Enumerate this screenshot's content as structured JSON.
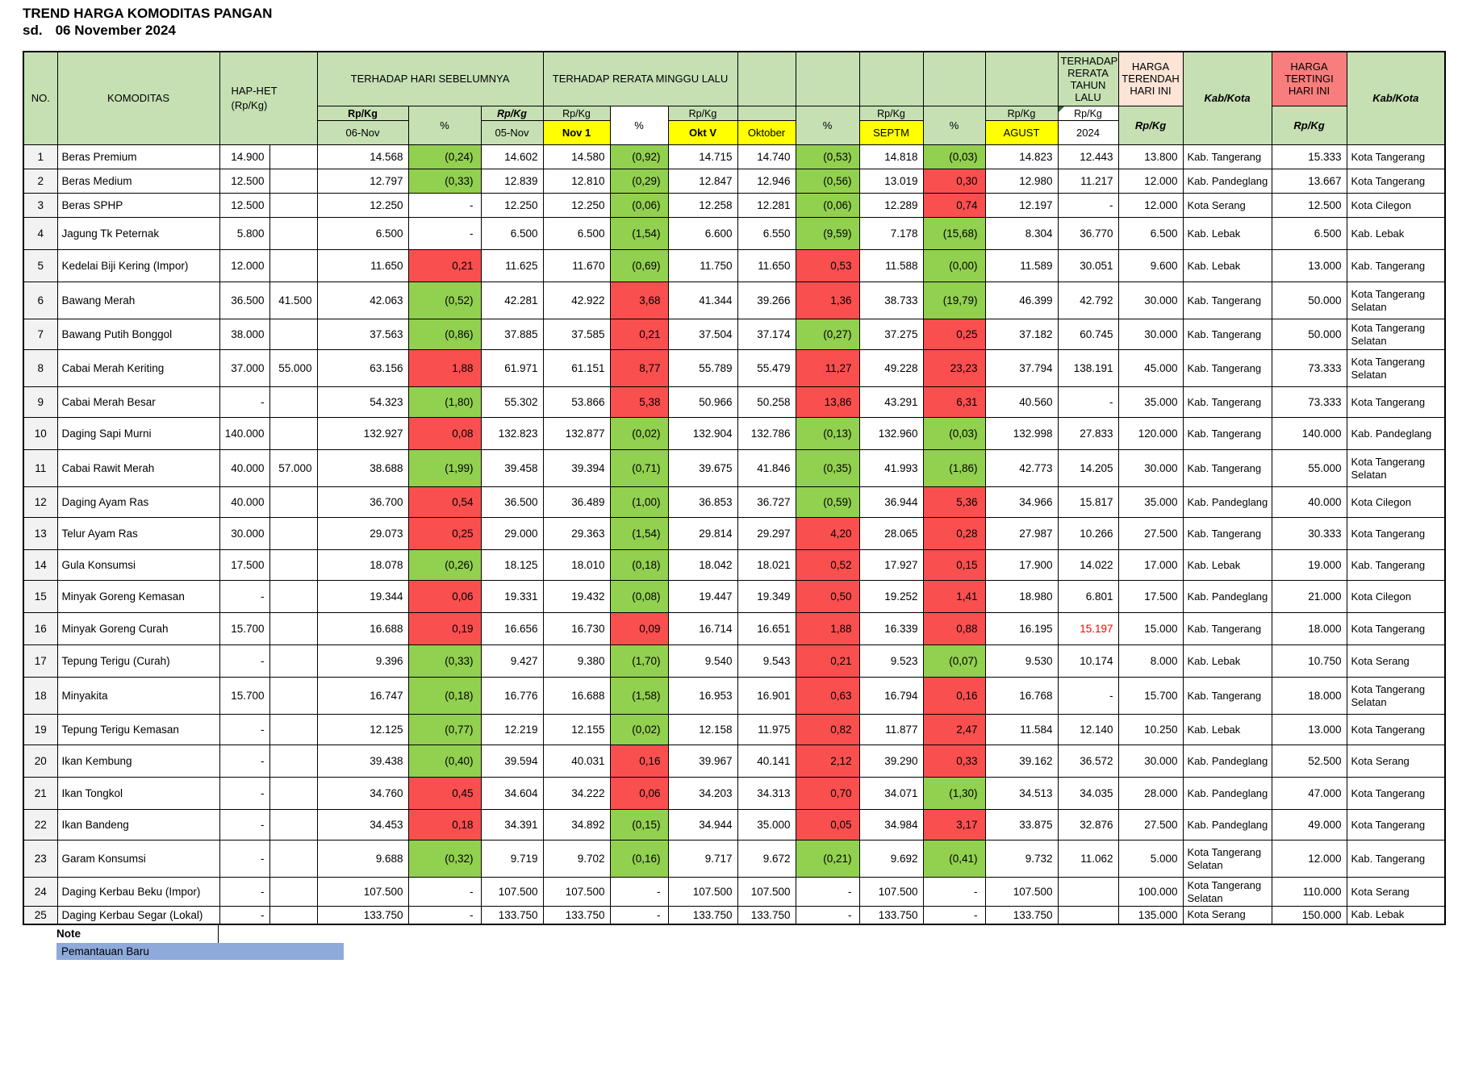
{
  "title": {
    "line1": "TREND HARGA KOMODITAS PANGAN",
    "prefix": "sd.",
    "date": "06 November 2024"
  },
  "colors": {
    "header_green": "#c6e0b4",
    "yellow": "#ffff00",
    "green_cell": "#92d050",
    "red_cell": "#f94f4f",
    "lowest_header": "#fce4d6",
    "highest_header": "#f87e7d",
    "no_col_bg": "#f2f2f2",
    "note_bar": "#8eaadb",
    "red_text": "#ff0000"
  },
  "header": {
    "no": "NO.",
    "komoditas": "KOMODITAS",
    "hap_het": "HAP-HET",
    "hap_het_unit": "(Rp/Kg)",
    "group_prev_day": "TERHADAP HARI SEBELUMNYA",
    "group_last_week": "TERHADAP RERATA MINGGU LALU",
    "group_last_year": "TERHADAP RERATA TAHUN LALU",
    "group_lowest": "HARGA TERENDAH HARI INI",
    "group_highest": "HARGA TERTINGI HARI INI",
    "kab_kota": "Kab/Kota",
    "rp_kg": "Rp/Kg",
    "pct": "%",
    "sub": {
      "d06": "06-Nov",
      "d05": "05-Nov",
      "nov1": "Nov 1",
      "oktv": "Okt V",
      "oktober": "Oktober",
      "septm": "SEPTM",
      "agust": "AGUST",
      "y2024": "2024"
    }
  },
  "note": {
    "label": "Note",
    "item": "Pemantauan Baru"
  },
  "rows": [
    {
      "no": "1",
      "name": "Beras Premium",
      "hap": "14.900",
      "het": "",
      "d06": "14.568",
      "p1": "(0,24)",
      "p1c": "g",
      "d05": "14.602",
      "nov1": "14.580",
      "p2": "(0,92)",
      "p2c": "g",
      "oktv": "14.715",
      "okt": "14.740",
      "p3": "(0,53)",
      "p3c": "g",
      "septm": "14.818",
      "p4": "(0,03)",
      "p4c": "g",
      "agust": "14.823",
      "y2024": "12.443",
      "low": "13.800",
      "low_loc": "Kab. Tangerang",
      "high": "15.333",
      "high_loc": "Kota Tangerang"
    },
    {
      "no": "2",
      "name": "Beras Medium",
      "hap": "12.500",
      "het": "",
      "d06": "12.797",
      "p1": "(0,33)",
      "p1c": "g",
      "d05": "12.839",
      "nov1": "12.810",
      "p2": "(0,29)",
      "p2c": "g",
      "oktv": "12.847",
      "okt": "12.946",
      "p3": "(0,56)",
      "p3c": "g",
      "septm": "13.019",
      "p4": "0,30",
      "p4c": "r",
      "agust": "12.980",
      "y2024": "11.217",
      "low": "12.000",
      "low_loc": "Kab. Pandeglang",
      "high": "13.667",
      "high_loc": "Kota Tangerang"
    },
    {
      "no": "3",
      "name": "Beras SPHP",
      "hap": "12.500",
      "het": "",
      "d06": "12.250",
      "p1": "-",
      "p1c": "",
      "d05": "12.250",
      "nov1": "12.250",
      "p2": "(0,06)",
      "p2c": "g",
      "oktv": "12.258",
      "okt": "12.281",
      "p3": "(0,06)",
      "p3c": "g",
      "septm": "12.289",
      "p4": "0,74",
      "p4c": "r",
      "agust": "12.197",
      "y2024": "-",
      "low": "12.000",
      "low_loc": "Kota Serang",
      "high": "12.500",
      "high_loc": "Kota Cilegon"
    },
    {
      "no": "4",
      "name": "Jagung Tk Peternak",
      "hap": "5.800",
      "het": "",
      "d06": "6.500",
      "p1": "-",
      "p1c": "",
      "d05": "6.500",
      "nov1": "6.500",
      "p2": "(1,54)",
      "p2c": "g",
      "oktv": "6.600",
      "okt": "6.550",
      "p3": "(9,59)",
      "p3c": "g",
      "septm": "7.178",
      "p4": "(15,68)",
      "p4c": "g",
      "agust": "8.304",
      "y2024": "36.770",
      "low": "6.500",
      "low_loc": "Kab. Lebak",
      "high": "6.500",
      "high_loc": "Kab. Lebak"
    },
    {
      "no": "5",
      "name": "Kedelai Biji Kering (Impor)",
      "hap": "12.000",
      "het": "",
      "d06": "11.650",
      "p1": "0,21",
      "p1c": "r",
      "d05": "11.625",
      "nov1": "11.670",
      "p2": "(0,69)",
      "p2c": "g",
      "oktv": "11.750",
      "okt": "11.650",
      "p3": "0,53",
      "p3c": "r",
      "septm": "11.588",
      "p4": "(0,00)",
      "p4c": "g",
      "agust": "11.589",
      "y2024": "30.051",
      "low": "9.600",
      "low_loc": "Kab. Lebak",
      "high": "13.000",
      "high_loc": "Kab. Tangerang"
    },
    {
      "no": "6",
      "name": "Bawang Merah",
      "hap": "36.500",
      "het": "41.500",
      "d06": "42.063",
      "p1": "(0,52)",
      "p1c": "g",
      "d05": "42.281",
      "nov1": "42.922",
      "p2": "3,68",
      "p2c": "r",
      "oktv": "41.344",
      "okt": "39.266",
      "p3": "1,36",
      "p3c": "r",
      "septm": "38.733",
      "p4": "(19,79)",
      "p4c": "g",
      "agust": "46.399",
      "y2024": "42.792",
      "low": "30.000",
      "low_loc": "Kab. Tangerang",
      "high": "50.000",
      "high_loc": "Kota Tangerang Selatan"
    },
    {
      "no": "7",
      "name": "Bawang Putih Bonggol",
      "hap": "38.000",
      "het": "",
      "d06": "37.563",
      "p1": "(0,86)",
      "p1c": "g",
      "d05": "37.885",
      "nov1": "37.585",
      "p2": "0,21",
      "p2c": "r",
      "oktv": "37.504",
      "okt": "37.174",
      "p3": "(0,27)",
      "p3c": "g",
      "septm": "37.275",
      "p4": "0,25",
      "p4c": "r",
      "agust": "37.182",
      "y2024": "60.745",
      "low": "30.000",
      "low_loc": "Kab. Tangerang",
      "high": "50.000",
      "high_loc": "Kota Tangerang Selatan"
    },
    {
      "no": "8",
      "name": "Cabai Merah Keriting",
      "hap": "37.000",
      "het": "55.000",
      "d06": "63.156",
      "p1": "1,88",
      "p1c": "r",
      "d05": "61.971",
      "nov1": "61.151",
      "p2": "8,77",
      "p2c": "r",
      "oktv": "55.789",
      "okt": "55.479",
      "p3": "11,27",
      "p3c": "r",
      "septm": "49.228",
      "p4": "23,23",
      "p4c": "r",
      "agust": "37.794",
      "y2024": "138.191",
      "low": "45.000",
      "low_loc": "Kab. Tangerang",
      "high": "73.333",
      "high_loc": "Kota Tangerang Selatan"
    },
    {
      "no": "9",
      "name": "Cabai Merah Besar",
      "hap": "-",
      "het": "",
      "d06": "54.323",
      "p1": "(1,80)",
      "p1c": "g",
      "d05": "55.302",
      "nov1": "53.866",
      "p2": "5,38",
      "p2c": "r",
      "oktv": "50.966",
      "okt": "50.258",
      "p3": "13,86",
      "p3c": "r",
      "septm": "43.291",
      "p4": "6,31",
      "p4c": "r",
      "agust": "40.560",
      "y2024": "-",
      "low": "35.000",
      "low_loc": "Kab. Tangerang",
      "high": "73.333",
      "high_loc": "Kota Tangerang"
    },
    {
      "no": "10",
      "name": "Daging Sapi Murni",
      "hap": "140.000",
      "het": "",
      "d06": "132.927",
      "p1": "0,08",
      "p1c": "r",
      "d05": "132.823",
      "nov1": "132.877",
      "p2": "(0,02)",
      "p2c": "g",
      "oktv": "132.904",
      "okt": "132.786",
      "p3": "(0,13)",
      "p3c": "g",
      "septm": "132.960",
      "p4": "(0,03)",
      "p4c": "g",
      "agust": "132.998",
      "y2024": "27.833",
      "low": "120.000",
      "low_loc": "Kab. Tangerang",
      "high": "140.000",
      "high_loc": "Kab. Pandeglang"
    },
    {
      "no": "11",
      "name": "Cabai Rawit Merah",
      "hap": "40.000",
      "het": "57.000",
      "d06": "38.688",
      "p1": "(1,99)",
      "p1c": "g",
      "d05": "39.458",
      "nov1": "39.394",
      "p2": "(0,71)",
      "p2c": "g",
      "oktv": "39.675",
      "okt": "41.846",
      "p3": "(0,35)",
      "p3c": "g",
      "septm": "41.993",
      "p4": "(1,86)",
      "p4c": "g",
      "agust": "42.773",
      "y2024": "14.205",
      "low": "30.000",
      "low_loc": "Kab. Tangerang",
      "high": "55.000",
      "high_loc": "Kota Tangerang Selatan"
    },
    {
      "no": "12",
      "name": "Daging Ayam Ras",
      "hap": "40.000",
      "het": "",
      "d06": "36.700",
      "p1": "0,54",
      "p1c": "r",
      "d05": "36.500",
      "nov1": "36.489",
      "p2": "(1,00)",
      "p2c": "g",
      "oktv": "36.853",
      "okt": "36.727",
      "p3": "(0,59)",
      "p3c": "g",
      "septm": "36.944",
      "p4": "5,36",
      "p4c": "r",
      "agust": "34.966",
      "y2024": "15.817",
      "low": "35.000",
      "low_loc": "Kab. Pandeglang",
      "high": "40.000",
      "high_loc": "Kota Cilegon"
    },
    {
      "no": "13",
      "name": "Telur Ayam Ras",
      "hap": "30.000",
      "het": "",
      "d06": "29.073",
      "p1": "0,25",
      "p1c": "r",
      "d05": "29.000",
      "nov1": "29.363",
      "p2": "(1,54)",
      "p2c": "g",
      "oktv": "29.814",
      "okt": "29.297",
      "p3": "4,20",
      "p3c": "r",
      "septm": "28.065",
      "p4": "0,28",
      "p4c": "r",
      "agust": "27.987",
      "y2024": "10.266",
      "low": "27.500",
      "low_loc": "Kab. Tangerang",
      "high": "30.333",
      "high_loc": "Kota Tangerang"
    },
    {
      "no": "14",
      "name": "Gula Konsumsi",
      "hap": "17.500",
      "het": "",
      "d06": "18.078",
      "p1": "(0,26)",
      "p1c": "g",
      "d05": "18.125",
      "nov1": "18.010",
      "p2": "(0,18)",
      "p2c": "g",
      "oktv": "18.042",
      "okt": "18.021",
      "p3": "0,52",
      "p3c": "r",
      "septm": "17.927",
      "p4": "0,15",
      "p4c": "r",
      "agust": "17.900",
      "y2024": "14.022",
      "low": "17.000",
      "low_loc": "Kab. Lebak",
      "high": "19.000",
      "high_loc": "Kab. Tangerang"
    },
    {
      "no": "15",
      "name": "Minyak Goreng Kemasan",
      "hap": "-",
      "het": "",
      "d06": "19.344",
      "p1": "0,06",
      "p1c": "r",
      "d05": "19.331",
      "nov1": "19.432",
      "p2": "(0,08)",
      "p2c": "g",
      "oktv": "19.447",
      "okt": "19.349",
      "p3": "0,50",
      "p3c": "r",
      "septm": "19.252",
      "p4": "1,41",
      "p4c": "r",
      "agust": "18.980",
      "y2024": "6.801",
      "low": "17.500",
      "low_loc": "Kab. Pandeglang",
      "high": "21.000",
      "high_loc": "Kota Cilegon"
    },
    {
      "no": "16",
      "name": "Minyak Goreng Curah",
      "hap": "15.700",
      "het": "",
      "d06": "16.688",
      "p1": "0,19",
      "p1c": "r",
      "d05": "16.656",
      "nov1": "16.730",
      "p2": "0,09",
      "p2c": "r",
      "oktv": "16.714",
      "okt": "16.651",
      "p3": "1,88",
      "p3c": "r",
      "septm": "16.339",
      "p4": "0,88",
      "p4c": "r",
      "agust": "16.195",
      "y2024": "15.197",
      "y2024_red": true,
      "low": "15.000",
      "low_loc": "Kab. Tangerang",
      "high": "18.000",
      "high_loc": "Kota Tangerang"
    },
    {
      "no": "17",
      "name": "Tepung Terigu (Curah)",
      "hap": "-",
      "het": "",
      "d06": "9.396",
      "p1": "(0,33)",
      "p1c": "g",
      "d05": "9.427",
      "nov1": "9.380",
      "p2": "(1,70)",
      "p2c": "g",
      "oktv": "9.540",
      "okt": "9.543",
      "p3": "0,21",
      "p3c": "r",
      "septm": "9.523",
      "p4": "(0,07)",
      "p4c": "g",
      "agust": "9.530",
      "y2024": "10.174",
      "low": "8.000",
      "low_loc": "Kab. Lebak",
      "high": "10.750",
      "high_loc": "Kota Serang"
    },
    {
      "no": "18",
      "name": "Minyakita",
      "hap": "15.700",
      "het": "",
      "d06": "16.747",
      "p1": "(0,18)",
      "p1c": "g",
      "d05": "16.776",
      "nov1": "16.688",
      "p2": "(1,58)",
      "p2c": "g",
      "oktv": "16.953",
      "okt": "16.901",
      "p3": "0,63",
      "p3c": "r",
      "septm": "16.794",
      "p4": "0,16",
      "p4c": "r",
      "agust": "16.768",
      "y2024": "-",
      "low": "15.700",
      "low_loc": "Kab. Tangerang",
      "high": "18.000",
      "high_loc": "Kota Tangerang Selatan"
    },
    {
      "no": "19",
      "name": "Tepung Terigu Kemasan",
      "hap": "-",
      "het": "",
      "d06": "12.125",
      "p1": "(0,77)",
      "p1c": "g",
      "d05": "12.219",
      "nov1": "12.155",
      "p2": "(0,02)",
      "p2c": "g",
      "oktv": "12.158",
      "okt": "11.975",
      "p3": "0,82",
      "p3c": "r",
      "septm": "11.877",
      "p4": "2,47",
      "p4c": "r",
      "agust": "11.584",
      "y2024": "12.140",
      "low": "10.250",
      "low_loc": "Kab. Lebak",
      "high": "13.000",
      "high_loc": "Kota Tangerang"
    },
    {
      "no": "20",
      "name": "Ikan Kembung",
      "hap": "-",
      "het": "",
      "d06": "39.438",
      "p1": "(0,40)",
      "p1c": "g",
      "d05": "39.594",
      "nov1": "40.031",
      "p2": "0,16",
      "p2c": "r",
      "oktv": "39.967",
      "okt": "40.141",
      "p3": "2,12",
      "p3c": "r",
      "septm": "39.290",
      "p4": "0,33",
      "p4c": "r",
      "agust": "39.162",
      "y2024": "36.572",
      "low": "30.000",
      "low_loc": "Kab. Pandeglang",
      "high": "52.500",
      "high_loc": "Kota Serang"
    },
    {
      "no": "21",
      "name": "Ikan Tongkol",
      "hap": "-",
      "het": "",
      "d06": "34.760",
      "p1": "0,45",
      "p1c": "r",
      "d05": "34.604",
      "nov1": "34.222",
      "p2": "0,06",
      "p2c": "r",
      "oktv": "34.203",
      "okt": "34.313",
      "p3": "0,70",
      "p3c": "r",
      "septm": "34.071",
      "p4": "(1,30)",
      "p4c": "g",
      "agust": "34.513",
      "y2024": "34.035",
      "low": "28.000",
      "low_loc": "Kab. Pandeglang",
      "high": "47.000",
      "high_loc": "Kota Tangerang"
    },
    {
      "no": "22",
      "name": "Ikan Bandeng",
      "hap": "-",
      "het": "",
      "d06": "34.453",
      "p1": "0,18",
      "p1c": "r",
      "d05": "34.391",
      "nov1": "34.892",
      "p2": "(0,15)",
      "p2c": "g",
      "oktv": "34.944",
      "okt": "35.000",
      "p3": "0,05",
      "p3c": "r",
      "septm": "34.984",
      "p4": "3,17",
      "p4c": "r",
      "agust": "33.875",
      "y2024": "32.876",
      "low": "27.500",
      "low_loc": "Kab. Pandeglang",
      "high": "49.000",
      "high_loc": "Kota Tangerang"
    },
    {
      "no": "23",
      "name": "Garam Konsumsi",
      "hap": "-",
      "het": "",
      "d06": "9.688",
      "p1": "(0,32)",
      "p1c": "g",
      "d05": "9.719",
      "nov1": "9.702",
      "p2": "(0,16)",
      "p2c": "g",
      "oktv": "9.717",
      "okt": "9.672",
      "p3": "(0,21)",
      "p3c": "g",
      "septm": "9.692",
      "p4": "(0,41)",
      "p4c": "g",
      "agust": "9.732",
      "y2024": "11.062",
      "low": "5.000",
      "low_loc": "Kota Tangerang Selatan",
      "high": "12.000",
      "high_loc": "Kab. Tangerang"
    },
    {
      "no": "24",
      "name": "Daging Kerbau Beku (Impor)",
      "hap": "-",
      "het": "",
      "d06": "107.500",
      "p1": "-",
      "p1c": "",
      "d05": "107.500",
      "nov1": "107.500",
      "p2": "-",
      "p2c": "",
      "oktv": "107.500",
      "okt": "107.500",
      "p3": "-",
      "p3c": "",
      "septm": "107.500",
      "p4": "-",
      "p4c": "",
      "agust": "107.500",
      "y2024": "",
      "low": "100.000",
      "low_loc": "Kota Tangerang Selatan",
      "high": "110.000",
      "high_loc": "Kota Serang"
    },
    {
      "no": "25",
      "name": "Daging Kerbau Segar (Lokal)",
      "hap": "-",
      "het": "",
      "d06": "133.750",
      "p1": "-",
      "p1c": "",
      "d05": "133.750",
      "nov1": "133.750",
      "p2": "-",
      "p2c": "",
      "oktv": "133.750",
      "okt": "133.750",
      "p3": "-",
      "p3c": "",
      "septm": "133.750",
      "p4": "-",
      "p4c": "",
      "agust": "133.750",
      "y2024": "",
      "low": "135.000",
      "low_loc": "Kota Serang",
      "high": "150.000",
      "high_loc": "Kab. Lebak"
    }
  ]
}
